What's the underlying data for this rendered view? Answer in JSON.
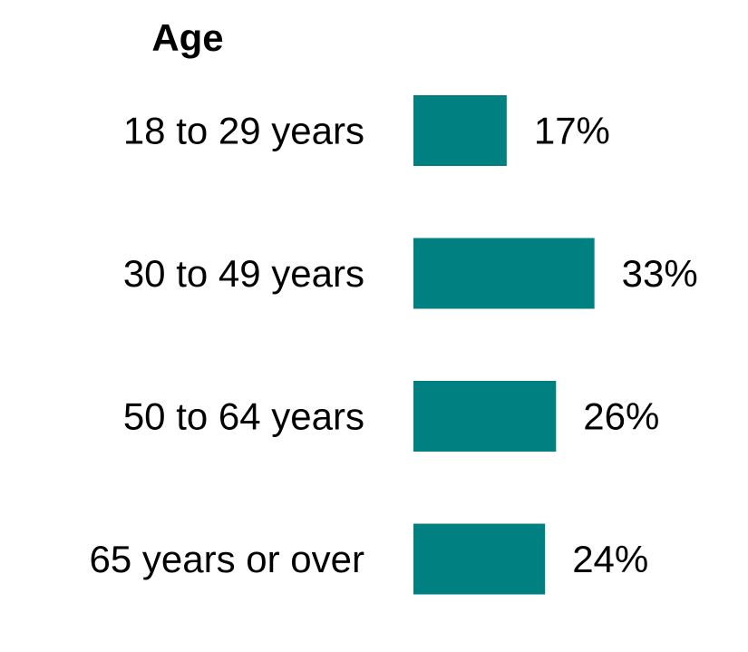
{
  "chart_data": {
    "type": "bar",
    "orientation": "horizontal",
    "title": "Age",
    "categories": [
      "18 to 29 years",
      "30 to 49 years",
      "50 to 64 years",
      "65 years or over"
    ],
    "values": [
      17,
      33,
      26,
      24
    ],
    "value_labels": [
      "17%",
      "33%",
      "26%",
      "24%"
    ],
    "unit": "%",
    "bar_color": "#008080",
    "grid": false,
    "legend": "none",
    "axes_visible": false
  }
}
